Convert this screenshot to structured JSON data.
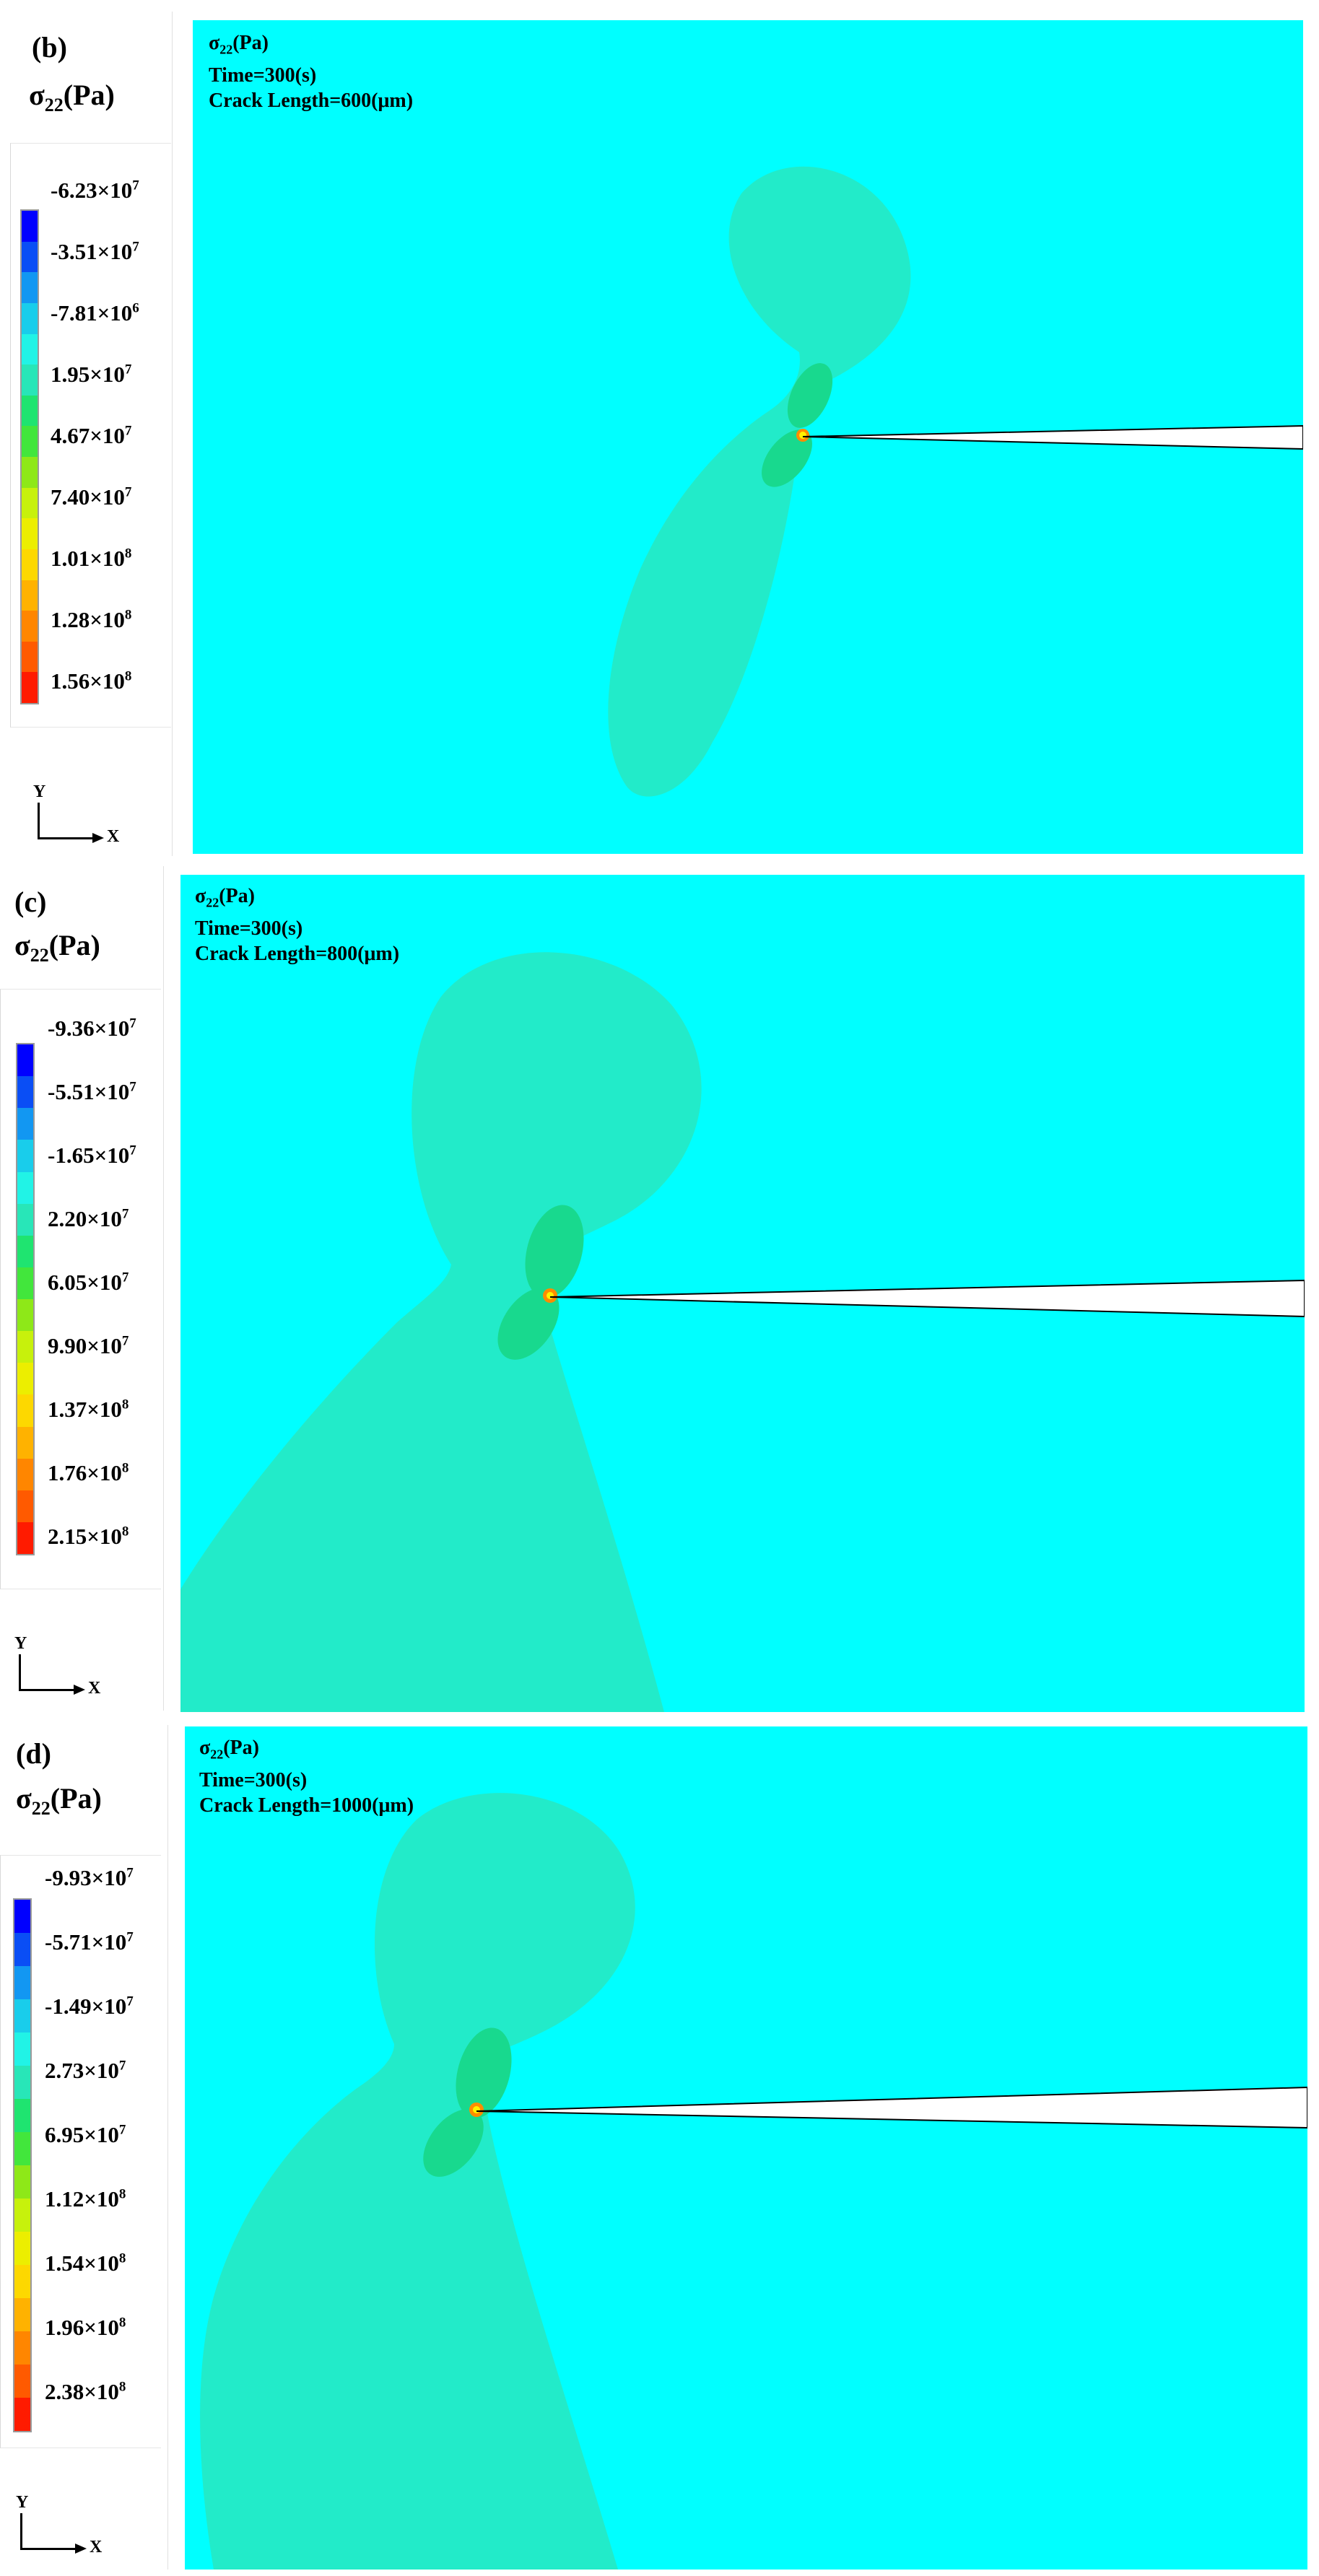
{
  "colors": {
    "background_field": "#00ffff",
    "lobe_outer": "#22ebc9",
    "lobe_inner": "#18d98e",
    "crack_tip": "#fff200"
  },
  "colormap": [
    "#0000ff",
    "#0a4ef5",
    "#1297f2",
    "#19cdeb",
    "#21f3e6",
    "#28e6b8",
    "#1fe470",
    "#42e63c",
    "#8ee818",
    "#c7f10c",
    "#ecee00",
    "#fdd800",
    "#ffb200",
    "#ff8600",
    "#ff5a00",
    "#ff1b00"
  ],
  "panels": [
    {
      "letter": "(b)",
      "legend_title_main": "σ",
      "legend_title_sub": "22",
      "legend_title_unit": "(Pa)",
      "legend_ticks": [
        {
          "mant": "-6.23×10",
          "exp": "7"
        },
        {
          "mant": "-3.51×10",
          "exp": "7"
        },
        {
          "mant": "-7.81×10",
          "exp": "6"
        },
        {
          "mant": "1.95×10",
          "exp": "7"
        },
        {
          "mant": "4.67×10",
          "exp": "7"
        },
        {
          "mant": "7.40×10",
          "exp": "7"
        },
        {
          "mant": "1.01×10",
          "exp": "8"
        },
        {
          "mant": "1.28×10",
          "exp": "8"
        },
        {
          "mant": "1.56×10",
          "exp": "8"
        }
      ],
      "axis_y": "Y",
      "axis_x": "X",
      "info_var": "σ",
      "info_var_sub": "22",
      "info_var_unit": "(Pa)",
      "info_time": "Time=300(s)",
      "info_crack": "Crack Length=600(μm)"
    },
    {
      "letter": "(c)",
      "legend_title_main": "σ",
      "legend_title_sub": "22",
      "legend_title_unit": "(Pa)",
      "legend_ticks": [
        {
          "mant": "-9.36×10",
          "exp": "7"
        },
        {
          "mant": "-5.51×10",
          "exp": "7"
        },
        {
          "mant": "-1.65×10",
          "exp": "7"
        },
        {
          "mant": "2.20×10",
          "exp": "7"
        },
        {
          "mant": "6.05×10",
          "exp": "7"
        },
        {
          "mant": "9.90×10",
          "exp": "7"
        },
        {
          "mant": "1.37×10",
          "exp": "8"
        },
        {
          "mant": "1.76×10",
          "exp": "8"
        },
        {
          "mant": "2.15×10",
          "exp": "8"
        }
      ],
      "axis_y": "Y",
      "axis_x": "X",
      "info_var": "σ",
      "info_var_sub": "22",
      "info_var_unit": "(Pa)",
      "info_time": "Time=300(s)",
      "info_crack": "Crack Length=800(μm)"
    },
    {
      "letter": "(d)",
      "legend_title_main": "σ",
      "legend_title_sub": "22",
      "legend_title_unit": "(Pa)",
      "legend_ticks": [
        {
          "mant": "-9.93×10",
          "exp": "7"
        },
        {
          "mant": "-5.71×10",
          "exp": "7"
        },
        {
          "mant": "-1.49×10",
          "exp": "7"
        },
        {
          "mant": "2.73×10",
          "exp": "7"
        },
        {
          "mant": "6.95×10",
          "exp": "7"
        },
        {
          "mant": "1.12×10",
          "exp": "8"
        },
        {
          "mant": "1.54×10",
          "exp": "8"
        },
        {
          "mant": "1.96×10",
          "exp": "8"
        },
        {
          "mant": "2.38×10",
          "exp": "8"
        }
      ],
      "axis_y": "Y",
      "axis_x": "X",
      "info_var": "σ",
      "info_var_sub": "22",
      "info_var_unit": "(Pa)",
      "info_time": "Time=300(s)",
      "info_crack": "Crack Length=1000(μm)"
    }
  ]
}
